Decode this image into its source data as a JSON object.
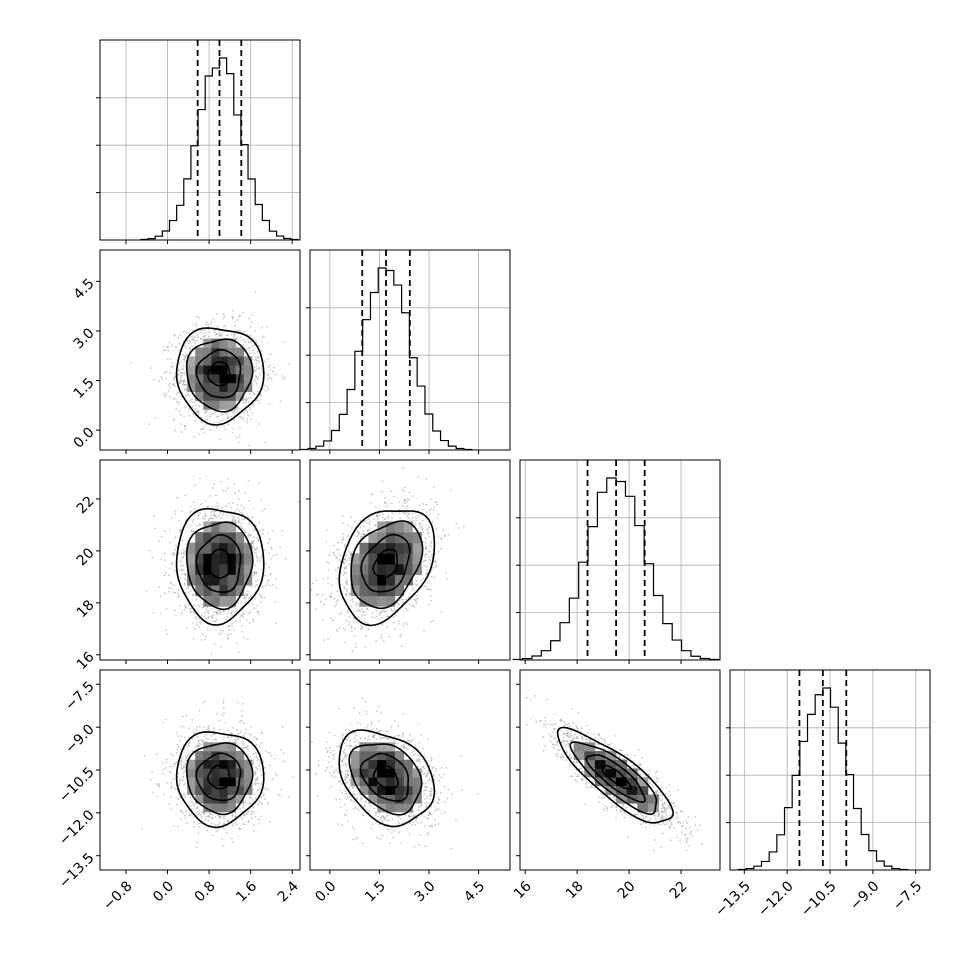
{
  "chart_data": {
    "type": "corner",
    "parameters": [
      {
        "index": 0,
        "mean": 1.0,
        "std": 0.42,
        "q16": 0.58,
        "q50": 1.0,
        "q84": 1.42,
        "range": [
          -1.3,
          2.55
        ],
        "ticks": [
          -0.8,
          0.0,
          0.8,
          1.6,
          2.4
        ],
        "tick_labels": [
          "−0.8",
          "0.0",
          "0.8",
          "1.6",
          "2.4"
        ]
      },
      {
        "index": 1,
        "mean": 1.7,
        "std": 0.72,
        "q16": 0.98,
        "q50": 1.7,
        "q84": 2.42,
        "range": [
          -0.6,
          5.45
        ],
        "ticks": [
          0.0,
          1.5,
          3.0,
          4.5
        ],
        "tick_labels": [
          "0.0",
          "1.5",
          "3.0",
          "4.5"
        ]
      },
      {
        "index": 2,
        "mean": 19.5,
        "std": 1.1,
        "q16": 18.4,
        "q50": 19.5,
        "q84": 20.6,
        "range": [
          15.8,
          23.5
        ],
        "ticks": [
          16,
          18,
          20,
          22
        ],
        "tick_labels": [
          "16",
          "18",
          "20",
          "22"
        ]
      },
      {
        "index": 3,
        "mean": -10.75,
        "std": 0.82,
        "q16": -11.57,
        "q50": -10.75,
        "q84": -9.93,
        "range": [
          -14.0,
          -7.0
        ],
        "ticks": [
          -13.5,
          -12.0,
          -10.5,
          -9.0,
          -7.5
        ],
        "tick_labels": [
          "−13.5",
          "−12.0",
          "−10.5",
          "−9.0",
          "−7.5"
        ]
      }
    ],
    "correlations": [
      {
        "x": 0,
        "y": 1,
        "rho": 0.0
      },
      {
        "x": 0,
        "y": 2,
        "rho": 0.0
      },
      {
        "x": 1,
        "y": 2,
        "rho": 0.3
      },
      {
        "x": 0,
        "y": 3,
        "rho": 0.0
      },
      {
        "x": 1,
        "y": 3,
        "rho": -0.3
      },
      {
        "x": 2,
        "y": 3,
        "rho": -0.83
      }
    ],
    "contour_levels": [
      0.5,
      1.0,
      1.5,
      2.0
    ],
    "grid": true
  }
}
